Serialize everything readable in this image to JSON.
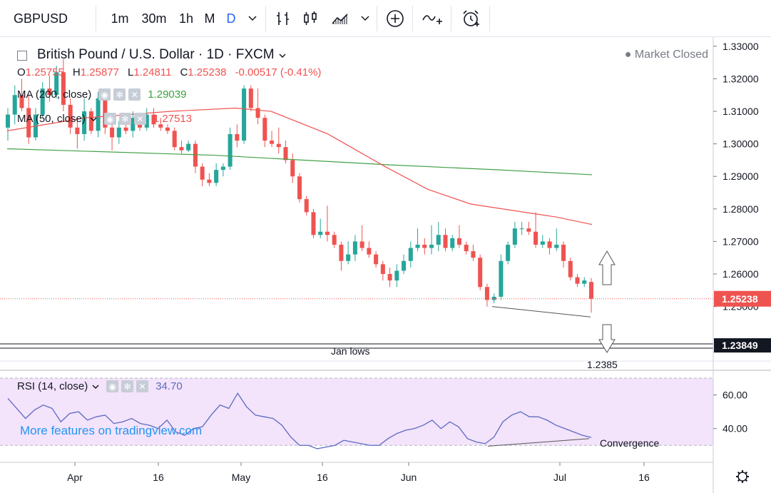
{
  "toolbar": {
    "symbol": "GBPUSD",
    "intervals": [
      "1m",
      "30m",
      "1h",
      "M",
      "D"
    ],
    "active_interval": "D",
    "dropdown_icon": "chevron-down-icon",
    "icons": [
      "bar-chart-icon",
      "candlestick-icon",
      "area-chart-icon",
      "chevron-down-icon",
      "plus-circle-icon",
      "indicators-icon",
      "alarm-clock-icon"
    ]
  },
  "header": {
    "title": "British Pound / U.S. Dollar · 1D · FXCM",
    "status": "● Market Closed",
    "open_label": "O",
    "open": "1.25755",
    "high_label": "H",
    "high": "1.25877",
    "low_label": "L",
    "low": "1.24811",
    "close_label": "C",
    "close": "1.25238",
    "change": "-0.00517 (-0.41%)"
  },
  "indicators": {
    "ma200_label": "MA (200, close)",
    "ma200_value": "1.29039",
    "ma50_label": "MA (50, close)",
    "ma50_value": "1.27513",
    "rsi_label": "RSI (14, close)",
    "rsi_value": "34.70"
  },
  "colors": {
    "up": "#26a69a",
    "down": "#ef5350",
    "ma200": "#43a047",
    "ma50": "#ef5350",
    "rsi_line": "#5c6bc0",
    "rsi_band": "#f3e3fb",
    "accent": "#2962ff"
  },
  "annotations": {
    "jan_lows": "Jan lows",
    "level": "1.2385",
    "convergence": "Convergence"
  },
  "watermark": "More features on tradingview.com",
  "chart_data": {
    "type": "candlestick",
    "ylim": [
      1.235,
      1.3315
    ],
    "y_ticks": [
      "1.33000",
      "1.32000",
      "1.31000",
      "1.30000",
      "1.29000",
      "1.28000",
      "1.27000",
      "1.26000",
      "1.25000"
    ],
    "x_ticks": [
      "Apr",
      "16",
      "May",
      "16",
      "Jun",
      "Jul",
      "16"
    ],
    "price_labels": [
      {
        "text": "1.25238",
        "value": 1.25238,
        "kind": "last"
      },
      {
        "text": "1.23849",
        "value": 1.23849,
        "kind": "line"
      }
    ],
    "horizontal_lines": [
      1.2385
    ],
    "candles": [
      [
        1.305,
        1.311,
        1.301,
        1.309
      ],
      [
        1.309,
        1.318,
        1.306,
        1.315
      ],
      [
        1.315,
        1.32,
        1.31,
        1.311
      ],
      [
        1.311,
        1.315,
        1.3,
        1.302
      ],
      [
        1.302,
        1.311,
        1.301,
        1.309
      ],
      [
        1.309,
        1.319,
        1.308,
        1.317
      ],
      [
        1.317,
        1.321,
        1.313,
        1.315
      ],
      [
        1.315,
        1.324,
        1.314,
        1.322
      ],
      [
        1.322,
        1.326,
        1.31,
        1.312
      ],
      [
        1.312,
        1.314,
        1.303,
        1.305
      ],
      [
        1.305,
        1.308,
        1.2985,
        1.303
      ],
      [
        1.303,
        1.314,
        1.301,
        1.31
      ],
      [
        1.31,
        1.311,
        1.303,
        1.304
      ],
      [
        1.304,
        1.316,
        1.302,
        1.314
      ],
      [
        1.314,
        1.315,
        1.303,
        1.305
      ],
      [
        1.305,
        1.308,
        1.298,
        1.302
      ],
      [
        1.302,
        1.307,
        1.3,
        1.305
      ],
      [
        1.305,
        1.308,
        1.303,
        1.304
      ],
      [
        1.304,
        1.31,
        1.302,
        1.308
      ],
      [
        1.308,
        1.309,
        1.304,
        1.305
      ],
      [
        1.305,
        1.311,
        1.304,
        1.309
      ],
      [
        1.309,
        1.311,
        1.305,
        1.306
      ],
      [
        1.306,
        1.308,
        1.304,
        1.305
      ],
      [
        1.305,
        1.306,
        1.303,
        1.304
      ],
      [
        1.304,
        1.305,
        1.298,
        1.299
      ],
      [
        1.299,
        1.301,
        1.297,
        1.298
      ],
      [
        1.298,
        1.301,
        1.2975,
        1.3
      ],
      [
        1.3,
        1.301,
        1.291,
        1.293
      ],
      [
        1.293,
        1.294,
        1.287,
        1.289
      ],
      [
        1.289,
        1.291,
        1.287,
        1.288
      ],
      [
        1.288,
        1.294,
        1.287,
        1.292
      ],
      [
        1.292,
        1.294,
        1.29,
        1.293
      ],
      [
        1.293,
        1.305,
        1.292,
        1.303
      ],
      [
        1.303,
        1.306,
        1.299,
        1.301
      ],
      [
        1.301,
        1.318,
        1.3,
        1.317
      ],
      [
        1.317,
        1.318,
        1.31,
        1.311
      ],
      [
        1.311,
        1.317,
        1.306,
        1.308
      ],
      [
        1.308,
        1.309,
        1.299,
        1.301
      ],
      [
        1.301,
        1.304,
        1.299,
        1.3
      ],
      [
        1.3,
        1.305,
        1.297,
        1.299
      ],
      [
        1.299,
        1.301,
        1.294,
        1.295
      ],
      [
        1.295,
        1.297,
        1.288,
        1.29
      ],
      [
        1.29,
        1.291,
        1.282,
        1.283
      ],
      [
        1.283,
        1.284,
        1.278,
        1.279
      ],
      [
        1.279,
        1.28,
        1.271,
        1.272
      ],
      [
        1.272,
        1.277,
        1.271,
        1.273
      ],
      [
        1.273,
        1.281,
        1.27,
        1.272
      ],
      [
        1.272,
        1.273,
        1.268,
        1.269
      ],
      [
        1.269,
        1.27,
        1.261,
        1.264
      ],
      [
        1.264,
        1.27,
        1.263,
        1.266
      ],
      [
        1.266,
        1.272,
        1.264,
        1.27
      ],
      [
        1.27,
        1.275,
        1.267,
        1.268
      ],
      [
        1.268,
        1.27,
        1.265,
        1.266
      ],
      [
        1.266,
        1.267,
        1.262,
        1.263
      ],
      [
        1.263,
        1.264,
        1.258,
        1.26
      ],
      [
        1.26,
        1.262,
        1.256,
        1.258
      ],
      [
        1.258,
        1.263,
        1.256,
        1.261
      ],
      [
        1.261,
        1.266,
        1.26,
        1.264
      ],
      [
        1.264,
        1.27,
        1.262,
        1.268
      ],
      [
        1.268,
        1.274,
        1.267,
        1.269
      ],
      [
        1.269,
        1.271,
        1.266,
        1.268
      ],
      [
        1.268,
        1.275,
        1.266,
        1.269
      ],
      [
        1.269,
        1.276,
        1.267,
        1.272
      ],
      [
        1.272,
        1.274,
        1.267,
        1.268
      ],
      [
        1.268,
        1.272,
        1.267,
        1.271
      ],
      [
        1.271,
        1.275,
        1.268,
        1.269
      ],
      [
        1.269,
        1.27,
        1.266,
        1.267
      ],
      [
        1.267,
        1.269,
        1.264,
        1.265
      ],
      [
        1.265,
        1.266,
        1.255,
        1.256
      ],
      [
        1.256,
        1.257,
        1.25,
        1.252
      ],
      [
        1.252,
        1.254,
        1.251,
        1.253
      ],
      [
        1.253,
        1.266,
        1.252,
        1.264
      ],
      [
        1.264,
        1.27,
        1.263,
        1.269
      ],
      [
        1.269,
        1.276,
        1.268,
        1.274
      ],
      [
        1.274,
        1.276,
        1.272,
        1.274
      ],
      [
        1.274,
        1.276,
        1.272,
        1.273
      ],
      [
        1.273,
        1.279,
        1.268,
        1.269
      ],
      [
        1.269,
        1.272,
        1.268,
        1.27
      ],
      [
        1.27,
        1.271,
        1.266,
        1.268
      ],
      [
        1.268,
        1.274,
        1.267,
        1.269
      ],
      [
        1.269,
        1.27,
        1.262,
        1.264
      ],
      [
        1.264,
        1.265,
        1.258,
        1.259
      ],
      [
        1.259,
        1.26,
        1.256,
        1.257
      ],
      [
        1.257,
        1.259,
        1.256,
        1.258
      ],
      [
        1.25755,
        1.25877,
        1.24811,
        1.25238
      ]
    ],
    "ma200": [
      [
        10,
        1.2985
      ],
      [
        300,
        1.2965
      ],
      [
        550,
        1.2935
      ],
      [
        700,
        1.292
      ],
      [
        830,
        1.2905
      ]
    ],
    "ma50": [
      [
        10,
        1.304
      ],
      [
        120,
        1.308
      ],
      [
        240,
        1.31
      ],
      [
        330,
        1.311
      ],
      [
        380,
        1.31
      ],
      [
        460,
        1.303
      ],
      [
        540,
        1.293
      ],
      [
        600,
        1.286
      ],
      [
        660,
        1.2815
      ],
      [
        720,
        1.2795
      ],
      [
        780,
        1.2775
      ],
      [
        830,
        1.2752
      ]
    ],
    "rsi": {
      "ylim": [
        25,
        70
      ],
      "ticks": [
        "60.00",
        "40.00"
      ],
      "band": [
        30,
        70
      ],
      "values": [
        58,
        52,
        46,
        51,
        54,
        52,
        44,
        49,
        50,
        45,
        47,
        48,
        43,
        44,
        46,
        43,
        42,
        40,
        45,
        38,
        36,
        40,
        41,
        48,
        54,
        52,
        61,
        53,
        48,
        47,
        46,
        42,
        35,
        30,
        30,
        28,
        29,
        30,
        33,
        32,
        31,
        30,
        30,
        34,
        37,
        39,
        40,
        42,
        45,
        40,
        44,
        41,
        34,
        32,
        31,
        35,
        44,
        48,
        50,
        47,
        47,
        45,
        42,
        40,
        38,
        36,
        34.7
      ]
    }
  }
}
